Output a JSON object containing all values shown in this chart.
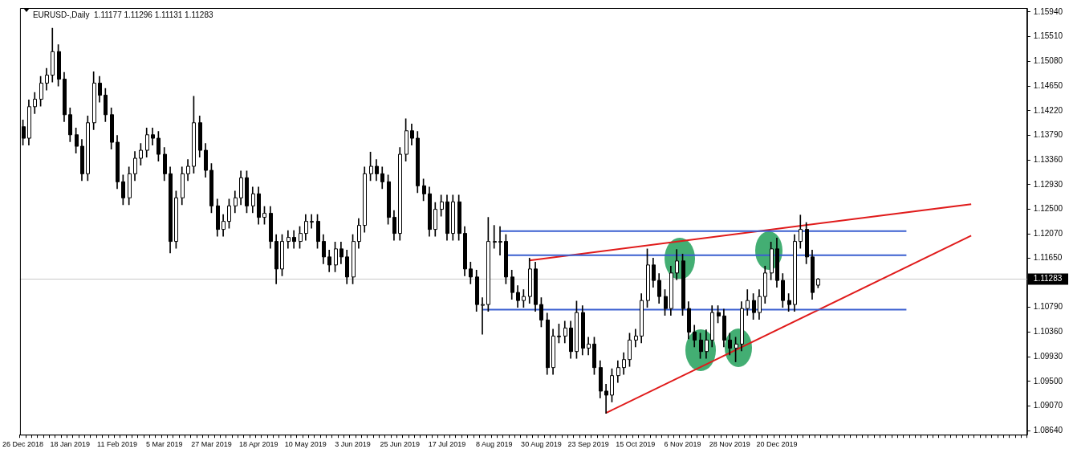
{
  "chart_data": {
    "type": "candlestick",
    "title": "EURUSD-,Daily  1.11177 1.11296 1.11131 1.11283",
    "categories": [
      "26 Dec 2018",
      null,
      null,
      null,
      null,
      null,
      null,
      null,
      "18 Jan 2019",
      null,
      null,
      null,
      null,
      null,
      null,
      null,
      "11 Feb 2019",
      null,
      null,
      null,
      null,
      null,
      null,
      null,
      "5 Mar 2019",
      null,
      null,
      null,
      null,
      null,
      null,
      null,
      "27 Mar 2019",
      null,
      null,
      null,
      null,
      null,
      null,
      null,
      "18 Apr 2019",
      null,
      null,
      null,
      null,
      null,
      null,
      null,
      "10 May 2019",
      null,
      null,
      null,
      null,
      null,
      null,
      null,
      "3 Jun 2019",
      null,
      null,
      null,
      null,
      null,
      null,
      null,
      "25 Jun 2019",
      null,
      null,
      null,
      null,
      null,
      null,
      null,
      "17 Jul 2019",
      null,
      null,
      null,
      null,
      null,
      null,
      null,
      "8 Aug 2019",
      null,
      null,
      null,
      null,
      null,
      null,
      null,
      "30 Aug 2019",
      null,
      null,
      null,
      null,
      null,
      null,
      null,
      "23 Sep 2019",
      null,
      null,
      null,
      null,
      null,
      null,
      null,
      "15 Oct 2019",
      null,
      null,
      null,
      null,
      null,
      null,
      null,
      "6 Nov 2019",
      null,
      null,
      null,
      null,
      null,
      null,
      null,
      "28 Nov 2019",
      null,
      null,
      null,
      null,
      null,
      null,
      null,
      "20 Dec 2019",
      null,
      null,
      null,
      null,
      null,
      null,
      null,
      null,
      null,
      null,
      null,
      null,
      null,
      null,
      null,
      null,
      null,
      null,
      null,
      null,
      null,
      null,
      null,
      null,
      null,
      null,
      null,
      null,
      null,
      null,
      null,
      null,
      null,
      null,
      null,
      null,
      null,
      null,
      null,
      null,
      null,
      null
    ],
    "ohlc": [
      [
        1.1394,
        1.1406,
        1.1362,
        1.1374
      ],
      [
        1.1374,
        1.1441,
        1.1362,
        1.1429
      ],
      [
        1.1429,
        1.1454,
        1.1417,
        1.1442
      ],
      [
        1.1442,
        1.1482,
        1.143,
        1.147
      ],
      [
        1.147,
        1.1496,
        1.1458,
        1.1484
      ],
      [
        1.1484,
        1.1566,
        1.1472,
        1.1525
      ],
      [
        1.1525,
        1.1537,
        1.1465,
        1.1477
      ],
      [
        1.1477,
        1.1489,
        1.1403,
        1.1415
      ],
      [
        1.1415,
        1.1427,
        1.1368,
        1.138
      ],
      [
        1.138,
        1.1392,
        1.1348,
        1.136
      ],
      [
        1.136,
        1.1372,
        1.13,
        1.1312
      ],
      [
        1.1312,
        1.1413,
        1.13,
        1.1401
      ],
      [
        1.1401,
        1.149,
        1.1389,
        1.147
      ],
      [
        1.147,
        1.1482,
        1.1437,
        1.1449
      ],
      [
        1.1449,
        1.1461,
        1.1403,
        1.1415
      ],
      [
        1.1415,
        1.1427,
        1.1355,
        1.1367
      ],
      [
        1.1367,
        1.1379,
        1.1286,
        1.1298
      ],
      [
        1.1298,
        1.131,
        1.1258,
        1.127
      ],
      [
        1.127,
        1.1324,
        1.1258,
        1.1312
      ],
      [
        1.1312,
        1.1351,
        1.13,
        1.1339
      ],
      [
        1.1339,
        1.1365,
        1.1327,
        1.1353
      ],
      [
        1.1353,
        1.1392,
        1.1341,
        1.138
      ],
      [
        1.138,
        1.1392,
        1.1362,
        1.1374
      ],
      [
        1.1374,
        1.1386,
        1.1334,
        1.1346
      ],
      [
        1.1346,
        1.1358,
        1.13,
        1.1312
      ],
      [
        1.1312,
        1.1324,
        1.1174,
        1.1194
      ],
      [
        1.1194,
        1.1282,
        1.1182,
        1.127
      ],
      [
        1.127,
        1.1324,
        1.1258,
        1.1312
      ],
      [
        1.1312,
        1.1337,
        1.13,
        1.1325
      ],
      [
        1.1325,
        1.1447,
        1.1313,
        1.1401
      ],
      [
        1.1401,
        1.1413,
        1.1341,
        1.1353
      ],
      [
        1.1353,
        1.1365,
        1.1306,
        1.1318
      ],
      [
        1.1318,
        1.133,
        1.1244,
        1.1256
      ],
      [
        1.1256,
        1.1268,
        1.1203,
        1.1215
      ],
      [
        1.1215,
        1.1241,
        1.1203,
        1.1229
      ],
      [
        1.1229,
        1.1268,
        1.1217,
        1.1256
      ],
      [
        1.1256,
        1.1282,
        1.1244,
        1.127
      ],
      [
        1.127,
        1.1317,
        1.1258,
        1.1305
      ],
      [
        1.1305,
        1.1317,
        1.1244,
        1.1256
      ],
      [
        1.1256,
        1.1289,
        1.1244,
        1.1277
      ],
      [
        1.1277,
        1.1289,
        1.1224,
        1.1236
      ],
      [
        1.1236,
        1.1255,
        1.1224,
        1.1243
      ],
      [
        1.1243,
        1.1255,
        1.1182,
        1.1194
      ],
      [
        1.1194,
        1.1206,
        1.112,
        1.1146
      ],
      [
        1.1146,
        1.1206,
        1.1134,
        1.1194
      ],
      [
        1.1194,
        1.1213,
        1.1182,
        1.1201
      ],
      [
        1.1201,
        1.1213,
        1.1182,
        1.1194
      ],
      [
        1.1194,
        1.122,
        1.1182,
        1.1208
      ],
      [
        1.1208,
        1.1241,
        1.1196,
        1.1229
      ],
      [
        1.1229,
        1.1241,
        1.1217,
        1.1229
      ],
      [
        1.1229,
        1.1241,
        1.1182,
        1.1194
      ],
      [
        1.1194,
        1.1206,
        1.1155,
        1.1167
      ],
      [
        1.1167,
        1.1179,
        1.1141,
        1.1153
      ],
      [
        1.1153,
        1.1193,
        1.1141,
        1.1181
      ],
      [
        1.1181,
        1.1193,
        1.1155,
        1.1167
      ],
      [
        1.1167,
        1.1179,
        1.112,
        1.1132
      ],
      [
        1.1132,
        1.1206,
        1.112,
        1.1194
      ],
      [
        1.1194,
        1.1234,
        1.1182,
        1.1222
      ],
      [
        1.1222,
        1.1324,
        1.121,
        1.1312
      ],
      [
        1.1312,
        1.135,
        1.13,
        1.1325
      ],
      [
        1.1325,
        1.1337,
        1.13,
        1.1312
      ],
      [
        1.1312,
        1.1324,
        1.1286,
        1.1298
      ],
      [
        1.1298,
        1.131,
        1.1224,
        1.1236
      ],
      [
        1.1236,
        1.1248,
        1.1196,
        1.1208
      ],
      [
        1.1208,
        1.1358,
        1.1196,
        1.1346
      ],
      [
        1.1346,
        1.1408,
        1.1334,
        1.1387
      ],
      [
        1.1387,
        1.1399,
        1.1362,
        1.1374
      ],
      [
        1.1374,
        1.1386,
        1.1279,
        1.1291
      ],
      [
        1.1291,
        1.1303,
        1.1265,
        1.1277
      ],
      [
        1.1277,
        1.1289,
        1.1203,
        1.1215
      ],
      [
        1.1215,
        1.1262,
        1.1203,
        1.125
      ],
      [
        1.125,
        1.1275,
        1.1238,
        1.1263
      ],
      [
        1.1263,
        1.1275,
        1.1196,
        1.1208
      ],
      [
        1.1208,
        1.1275,
        1.1196,
        1.1263
      ],
      [
        1.1263,
        1.1275,
        1.1196,
        1.1208
      ],
      [
        1.1208,
        1.122,
        1.1134,
        1.1146
      ],
      [
        1.1146,
        1.1158,
        1.112,
        1.1132
      ],
      [
        1.1132,
        1.1144,
        1.1072,
        1.1084
      ],
      [
        1.1084,
        1.1096,
        1.1032,
        1.1084
      ],
      [
        1.1084,
        1.1236,
        1.1072,
        1.1194
      ],
      [
        1.1194,
        1.1222,
        1.1182,
        1.1194
      ],
      [
        1.1194,
        1.122,
        1.117,
        1.1194
      ],
      [
        1.1194,
        1.1206,
        1.112,
        1.1132
      ],
      [
        1.1132,
        1.1144,
        1.1093,
        1.1105
      ],
      [
        1.1105,
        1.1117,
        1.1079,
        1.1091
      ],
      [
        1.1091,
        1.111,
        1.1079,
        1.1098
      ],
      [
        1.1098,
        1.1165,
        1.1086,
        1.1146
      ],
      [
        1.1146,
        1.1158,
        1.1072,
        1.1084
      ],
      [
        1.1084,
        1.1096,
        1.1045,
        1.1057
      ],
      [
        1.1057,
        1.1069,
        1.0962,
        1.0974
      ],
      [
        1.0974,
        1.1041,
        1.0962,
        1.1029
      ],
      [
        1.1029,
        1.105,
        1.1017,
        1.1029
      ],
      [
        1.1029,
        1.1055,
        1.1017,
        1.1043
      ],
      [
        1.1043,
        1.1055,
        1.099,
        1.1002
      ],
      [
        1.1002,
        1.109,
        1.099,
        1.107
      ],
      [
        1.107,
        1.1082,
        1.0996,
        1.1008
      ],
      [
        1.1008,
        1.1027,
        1.0996,
        1.1015
      ],
      [
        1.1015,
        1.1027,
        1.0962,
        1.0974
      ],
      [
        1.0974,
        1.0986,
        1.0921,
        1.0933
      ],
      [
        1.0933,
        1.0945,
        1.0894,
        1.0926
      ],
      [
        1.0926,
        1.0972,
        1.0914,
        1.096
      ],
      [
        1.096,
        1.0986,
        1.0948,
        1.0974
      ],
      [
        1.0974,
        1.1,
        1.0962,
        1.0988
      ],
      [
        1.0988,
        1.1034,
        1.0976,
        1.1022
      ],
      [
        1.1022,
        1.1041,
        1.101,
        1.1029
      ],
      [
        1.1029,
        1.1103,
        1.1017,
        1.1091
      ],
      [
        1.1091,
        1.1181,
        1.1079,
        1.1153
      ],
      [
        1.1153,
        1.1165,
        1.1114,
        1.1126
      ],
      [
        1.1126,
        1.1138,
        1.1086,
        1.1098
      ],
      [
        1.1098,
        1.111,
        1.1065,
        1.1077
      ],
      [
        1.1077,
        1.1151,
        1.1065,
        1.1139
      ],
      [
        1.1139,
        1.118,
        1.1127,
        1.116
      ],
      [
        1.116,
        1.1172,
        1.1065,
        1.1077
      ],
      [
        1.1077,
        1.1089,
        1.1024,
        1.1036
      ],
      [
        1.1036,
        1.1048,
        1.101,
        1.1022
      ],
      [
        1.1022,
        1.1034,
        1.099,
        1.1002
      ],
      [
        1.1002,
        1.104,
        1.099,
        1.1022
      ],
      [
        1.1022,
        1.1082,
        1.101,
        1.107
      ],
      [
        1.107,
        1.1082,
        1.1052,
        1.1064
      ],
      [
        1.1064,
        1.1076,
        1.101,
        1.1022
      ],
      [
        1.1022,
        1.1034,
        1.0996,
        1.1008
      ],
      [
        1.1008,
        1.1027,
        1.0984,
        1.1015
      ],
      [
        1.1015,
        1.1089,
        1.1003,
        1.1077
      ],
      [
        1.1077,
        1.111,
        1.1065,
        1.1091
      ],
      [
        1.1091,
        1.1103,
        1.1058,
        1.107
      ],
      [
        1.107,
        1.111,
        1.1058,
        1.1098
      ],
      [
        1.1098,
        1.1151,
        1.1086,
        1.1139
      ],
      [
        1.1139,
        1.1193,
        1.1127,
        1.1181
      ],
      [
        1.1181,
        1.12,
        1.1114,
        1.1126
      ],
      [
        1.1126,
        1.1138,
        1.1079,
        1.1091
      ],
      [
        1.1091,
        1.1103,
        1.1072,
        1.1084
      ],
      [
        1.1084,
        1.1206,
        1.1072,
        1.1194
      ],
      [
        1.1194,
        1.124,
        1.1182,
        1.1215
      ],
      [
        1.1215,
        1.1227,
        1.1155,
        1.1167
      ],
      [
        1.1167,
        1.1179,
        1.1093,
        1.1105
      ],
      [
        1.11177,
        1.11296,
        1.11131,
        1.11283
      ],
      null,
      null,
      null,
      null,
      null,
      null,
      null,
      null,
      null,
      null,
      null,
      null,
      null,
      null,
      null,
      null,
      null,
      null,
      null,
      null,
      null,
      null,
      null,
      null,
      null,
      null,
      null,
      null,
      null,
      null,
      null,
      null,
      null,
      null,
      null
    ],
    "series": [
      {
        "type": "line",
        "color": "#3a5fd0",
        "values": [
          null,
          null,
          null,
          null,
          null,
          null,
          null,
          null,
          null,
          null,
          null,
          null,
          null,
          null,
          null,
          null,
          null,
          null,
          null,
          null,
          null,
          null,
          null,
          null,
          null,
          null,
          null,
          null,
          null,
          null,
          null,
          null,
          null,
          null,
          null,
          null,
          null,
          null,
          null,
          null,
          null,
          null,
          null,
          null,
          null,
          null,
          null,
          null,
          null,
          null,
          null,
          null,
          null,
          null,
          null,
          null,
          null,
          null,
          null,
          null,
          null,
          null,
          null,
          null,
          null,
          null,
          null,
          null,
          null,
          null,
          null,
          null,
          null,
          null,
          null,
          null,
          null,
          null,
          null,
          null,
          null,
          1.1212,
          null,
          null,
          null,
          null,
          null,
          null,
          null,
          null,
          null,
          null,
          null,
          null,
          null,
          null,
          null,
          null,
          null,
          null,
          null,
          null,
          null,
          null,
          null,
          null,
          null,
          null,
          null,
          null,
          null,
          null,
          null,
          null,
          null,
          null,
          null,
          null,
          null,
          null,
          null,
          null,
          null,
          null,
          null,
          null,
          null,
          null,
          null,
          null,
          null,
          null,
          null,
          null,
          null,
          null,
          null,
          null,
          null,
          null,
          null,
          null,
          null,
          null,
          null,
          null,
          null,
          null,
          null,
          null,
          1.1212,
          null,
          null,
          null,
          null,
          null,
          null,
          null,
          null,
          null,
          null,
          null,
          null,
          null,
          null,
          null,
          null,
          null,
          null,
          null,
          null
        ]
      },
      {
        "type": "line",
        "color": "#3a5fd0",
        "values": [
          null,
          null,
          null,
          null,
          null,
          null,
          null,
          null,
          null,
          null,
          null,
          null,
          null,
          null,
          null,
          null,
          null,
          null,
          null,
          null,
          null,
          null,
          null,
          null,
          null,
          null,
          null,
          null,
          null,
          null,
          null,
          null,
          null,
          null,
          null,
          null,
          null,
          null,
          null,
          null,
          null,
          null,
          null,
          null,
          null,
          null,
          null,
          null,
          null,
          null,
          null,
          null,
          null,
          null,
          null,
          null,
          null,
          null,
          null,
          null,
          null,
          null,
          null,
          null,
          null,
          null,
          null,
          null,
          null,
          null,
          null,
          null,
          null,
          null,
          null,
          null,
          null,
          null,
          null,
          null,
          null,
          null,
          1.117,
          null,
          null,
          null,
          null,
          null,
          null,
          null,
          null,
          null,
          null,
          null,
          null,
          null,
          null,
          null,
          null,
          null,
          null,
          null,
          null,
          null,
          null,
          null,
          null,
          null,
          null,
          null,
          null,
          null,
          null,
          null,
          null,
          null,
          null,
          null,
          null,
          null,
          null,
          null,
          null,
          null,
          null,
          null,
          null,
          null,
          null,
          null,
          null,
          null,
          null,
          null,
          null,
          null,
          null,
          null,
          null,
          null,
          null,
          null,
          null,
          null,
          null,
          null,
          null,
          null,
          null,
          null,
          1.117,
          null,
          null,
          null,
          null,
          null,
          null,
          null,
          null,
          null,
          null,
          null,
          null,
          null,
          null,
          null,
          null,
          null,
          null,
          null,
          null
        ]
      },
      {
        "type": "line",
        "color": "#3a5fd0",
        "values": [
          null,
          null,
          null,
          null,
          null,
          null,
          null,
          null,
          null,
          null,
          null,
          null,
          null,
          null,
          null,
          null,
          null,
          null,
          null,
          null,
          null,
          null,
          null,
          null,
          null,
          null,
          null,
          null,
          null,
          null,
          null,
          null,
          null,
          null,
          null,
          null,
          null,
          null,
          null,
          null,
          null,
          null,
          null,
          null,
          null,
          null,
          null,
          null,
          null,
          null,
          null,
          null,
          null,
          null,
          null,
          null,
          null,
          null,
          null,
          null,
          null,
          null,
          null,
          null,
          null,
          null,
          null,
          null,
          null,
          null,
          null,
          null,
          null,
          null,
          null,
          null,
          null,
          null,
          1.1075,
          null,
          null,
          null,
          null,
          null,
          null,
          null,
          null,
          null,
          null,
          null,
          null,
          null,
          null,
          null,
          null,
          null,
          null,
          null,
          null,
          null,
          null,
          null,
          null,
          null,
          null,
          null,
          null,
          null,
          null,
          null,
          null,
          null,
          null,
          null,
          null,
          null,
          null,
          null,
          null,
          null,
          null,
          null,
          null,
          null,
          null,
          null,
          null,
          null,
          null,
          null,
          null,
          null,
          null,
          null,
          null,
          null,
          null,
          null,
          null,
          null,
          null,
          null,
          null,
          null,
          null,
          null,
          null,
          null,
          null,
          null,
          1.1075,
          null,
          null,
          null,
          null,
          null,
          null,
          null,
          null,
          null,
          null,
          null,
          null,
          null,
          null,
          null,
          null,
          null,
          null,
          null,
          null
        ]
      },
      {
        "type": "line",
        "color": "#e01b1b",
        "values": [
          null,
          null,
          null,
          null,
          null,
          null,
          null,
          null,
          null,
          null,
          null,
          null,
          null,
          null,
          null,
          null,
          null,
          null,
          null,
          null,
          null,
          null,
          null,
          null,
          null,
          null,
          null,
          null,
          null,
          null,
          null,
          null,
          null,
          null,
          null,
          null,
          null,
          null,
          null,
          null,
          null,
          null,
          null,
          null,
          null,
          null,
          null,
          null,
          null,
          null,
          null,
          null,
          null,
          null,
          null,
          null,
          null,
          null,
          null,
          null,
          null,
          null,
          null,
          null,
          null,
          null,
          null,
          null,
          null,
          null,
          null,
          null,
          null,
          null,
          null,
          null,
          null,
          null,
          null,
          null,
          null,
          null,
          null,
          null,
          null,
          null,
          1.1161,
          null,
          null,
          null,
          null,
          null,
          null,
          null,
          null,
          null,
          null,
          null,
          null,
          null,
          null,
          null,
          null,
          null,
          null,
          null,
          null,
          null,
          null,
          null,
          null,
          null,
          null,
          null,
          null,
          null,
          null,
          null,
          null,
          null,
          null,
          null,
          null,
          null,
          null,
          null,
          null,
          null,
          null,
          null,
          null,
          null,
          null,
          null,
          null,
          null,
          null,
          null,
          null,
          null,
          null,
          null,
          null,
          null,
          null,
          null,
          null,
          null,
          null,
          null,
          null,
          null,
          null,
          null,
          null,
          null,
          null,
          null,
          null,
          null,
          null,
          1.1259,
          null,
          null,
          null,
          null,
          null,
          null,
          null,
          null,
          null
        ]
      },
      {
        "type": "line",
        "color": "#e01b1b",
        "values": [
          null,
          null,
          null,
          null,
          null,
          null,
          null,
          null,
          null,
          null,
          null,
          null,
          null,
          null,
          null,
          null,
          null,
          null,
          null,
          null,
          null,
          null,
          null,
          null,
          null,
          null,
          null,
          null,
          null,
          null,
          null,
          null,
          null,
          null,
          null,
          null,
          null,
          null,
          null,
          null,
          null,
          null,
          null,
          null,
          null,
          null,
          null,
          null,
          null,
          null,
          null,
          null,
          null,
          null,
          null,
          null,
          null,
          null,
          null,
          null,
          null,
          null,
          null,
          null,
          null,
          null,
          null,
          null,
          null,
          null,
          null,
          null,
          null,
          null,
          null,
          null,
          null,
          null,
          null,
          null,
          null,
          null,
          null,
          null,
          null,
          null,
          null,
          null,
          null,
          null,
          null,
          null,
          null,
          null,
          null,
          null,
          null,
          null,
          null,
          1.0895,
          null,
          null,
          null,
          null,
          null,
          null,
          null,
          null,
          null,
          null,
          null,
          null,
          null,
          null,
          null,
          null,
          null,
          null,
          null,
          null,
          null,
          null,
          null,
          null,
          null,
          null,
          null,
          null,
          null,
          null,
          null,
          null,
          null,
          null,
          null,
          null,
          null,
          null,
          null,
          null,
          null,
          null,
          null,
          null,
          null,
          null,
          null,
          null,
          null,
          null,
          null,
          null,
          null,
          null,
          null,
          null,
          null,
          null,
          null,
          null,
          null,
          1.1204,
          null,
          null,
          null,
          null,
          null,
          null,
          null,
          null,
          null
        ]
      }
    ],
    "ref_lines": [
      {
        "axis": "y",
        "value": 1.11283,
        "label": "1.11283",
        "color": "#c8c8c8"
      }
    ],
    "ylim": [
      1.0857,
      1.1601
    ],
    "yticks": [
      {
        "value": 1.0864,
        "label": "1.08640"
      },
      {
        "value": 1.0907,
        "label": "1.09070"
      },
      {
        "value": 1.095,
        "label": "1.09500"
      },
      {
        "value": 1.0993,
        "label": "1.09930"
      },
      {
        "value": 1.1036,
        "label": "1.10360"
      },
      {
        "value": 1.1079,
        "label": "1.10790"
      },
      {
        "value": 1.1165,
        "label": "1.11650"
      },
      {
        "value": 1.1207,
        "label": "1.12070"
      },
      {
        "value": 1.125,
        "label": "1.12500"
      },
      {
        "value": 1.1293,
        "label": "1.12930"
      },
      {
        "value": 1.1336,
        "label": "1.13360"
      },
      {
        "value": 1.1379,
        "label": "1.13790"
      },
      {
        "value": 1.1422,
        "label": "1.14220"
      },
      {
        "value": 1.1465,
        "label": "1.14650"
      },
      {
        "value": 1.1508,
        "label": "1.15080"
      },
      {
        "value": 1.1551,
        "label": "1.15510"
      },
      {
        "value": 1.1594,
        "label": "1.15940"
      }
    ],
    "grid": false,
    "legend": false
  }
}
